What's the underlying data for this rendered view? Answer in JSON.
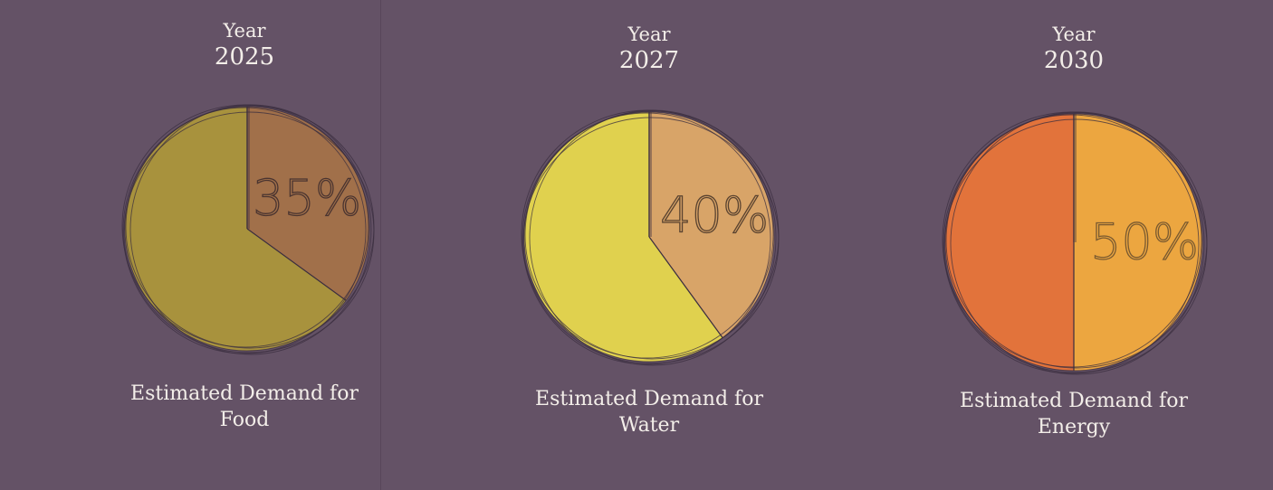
{
  "chart_data": [
    {
      "type": "pie",
      "year_label": "Year",
      "year": "2025",
      "caption_line1": "Estimated Demand for",
      "caption_line2": "Food",
      "value_label": "35%",
      "values": [
        35,
        65
      ],
      "colors": {
        "highlight": "#a1704a",
        "rest": "#a8923d",
        "stroke": "#3a2d3f",
        "text_stroke": "#4a3430"
      }
    },
    {
      "type": "pie",
      "year_label": "Year",
      "year": "2027",
      "caption_line1": "Estimated Demand for",
      "caption_line2": "Water",
      "value_label": "40%",
      "values": [
        40,
        60
      ],
      "colors": {
        "highlight": "#d8a468",
        "rest": "#e0d14e",
        "stroke": "#3a2d3f",
        "text_stroke": "#5a4330"
      }
    },
    {
      "type": "pie",
      "year_label": "Year",
      "year": "2030",
      "caption_line1": "Estimated Demand for",
      "caption_line2": "Energy",
      "value_label": "50%",
      "values": [
        50,
        50
      ],
      "colors": {
        "highlight": "#eca640",
        "rest": "#e2733b",
        "stroke": "#3a2d3f",
        "text_stroke": "#7a5a30"
      }
    }
  ]
}
